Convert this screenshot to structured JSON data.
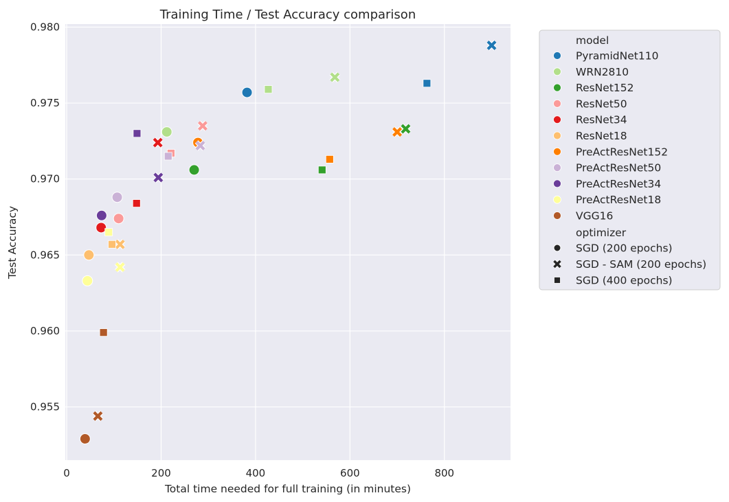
{
  "chart_data": {
    "type": "scatter",
    "title": "Training Time / Test Accuracy comparison",
    "xlabel": "Total time needed for full training (in minutes)",
    "ylabel": "Test Accuracy",
    "xlim": [
      -3,
      940
    ],
    "ylim": [
      0.9515,
      0.9802
    ],
    "xticks": [
      0,
      200,
      400,
      600,
      800
    ],
    "yticks": [
      0.955,
      0.96,
      0.965,
      0.97,
      0.975,
      0.98
    ],
    "grid": true,
    "legend_position": "outside-right",
    "legend": {
      "hue_title": "model",
      "style_title": "optimizer",
      "models": [
        {
          "name": "PyramidNet110",
          "color": "#1f78b4"
        },
        {
          "name": "WRN2810",
          "color": "#b2df8a"
        },
        {
          "name": "ResNet152",
          "color": "#33a02c"
        },
        {
          "name": "ResNet50",
          "color": "#fb9a99"
        },
        {
          "name": "ResNet34",
          "color": "#e31a1c"
        },
        {
          "name": "ResNet18",
          "color": "#fdbf6f"
        },
        {
          "name": "PreActResNet152",
          "color": "#ff7f00"
        },
        {
          "name": "PreActResNet50",
          "color": "#cab2d6"
        },
        {
          "name": "PreActResNet34",
          "color": "#6a3d9a"
        },
        {
          "name": "PreActResNet18",
          "color": "#ffff99"
        },
        {
          "name": "VGG16",
          "color": "#b15928"
        }
      ],
      "optimizers": [
        {
          "name": "SGD (200 epochs)",
          "marker": "circle"
        },
        {
          "name": "SGD - SAM (200 epochs)",
          "marker": "x"
        },
        {
          "name": "SGD (400 epochs)",
          "marker": "square"
        }
      ]
    },
    "points": [
      {
        "model": "PyramidNet110",
        "optimizer": "SGD (200 epochs)",
        "x": 382,
        "y": 0.9757
      },
      {
        "model": "PyramidNet110",
        "optimizer": "SGD - SAM (200 epochs)",
        "x": 900,
        "y": 0.9788
      },
      {
        "model": "PyramidNet110",
        "optimizer": "SGD (400 epochs)",
        "x": 763,
        "y": 0.9763
      },
      {
        "model": "WRN2810",
        "optimizer": "SGD (200 epochs)",
        "x": 212,
        "y": 0.9731
      },
      {
        "model": "WRN2810",
        "optimizer": "SGD - SAM (200 epochs)",
        "x": 568,
        "y": 0.9767
      },
      {
        "model": "WRN2810",
        "optimizer": "SGD (400 epochs)",
        "x": 427,
        "y": 0.9759
      },
      {
        "model": "ResNet152",
        "optimizer": "SGD (200 epochs)",
        "x": 270,
        "y": 0.9706
      },
      {
        "model": "ResNet152",
        "optimizer": "SGD - SAM (200 epochs)",
        "x": 718,
        "y": 0.9733
      },
      {
        "model": "ResNet152",
        "optimizer": "SGD (400 epochs)",
        "x": 541,
        "y": 0.9706
      },
      {
        "model": "ResNet50",
        "optimizer": "SGD (200 epochs)",
        "x": 110,
        "y": 0.9674
      },
      {
        "model": "ResNet50",
        "optimizer": "SGD - SAM (200 epochs)",
        "x": 288,
        "y": 0.9735
      },
      {
        "model": "ResNet50",
        "optimizer": "SGD (400 epochs)",
        "x": 221,
        "y": 0.9717
      },
      {
        "model": "ResNet34",
        "optimizer": "SGD (200 epochs)",
        "x": 73,
        "y": 0.9668
      },
      {
        "model": "ResNet34",
        "optimizer": "SGD - SAM (200 epochs)",
        "x": 193,
        "y": 0.9724
      },
      {
        "model": "ResNet34",
        "optimizer": "SGD (400 epochs)",
        "x": 148,
        "y": 0.9684
      },
      {
        "model": "ResNet18",
        "optimizer": "SGD (200 epochs)",
        "x": 47,
        "y": 0.965
      },
      {
        "model": "ResNet18",
        "optimizer": "SGD - SAM (200 epochs)",
        "x": 113,
        "y": 0.9657
      },
      {
        "model": "ResNet18",
        "optimizer": "SGD (400 epochs)",
        "x": 96,
        "y": 0.9657
      },
      {
        "model": "PreActResNet152",
        "optimizer": "SGD (200 epochs)",
        "x": 278,
        "y": 0.9724
      },
      {
        "model": "PreActResNet152",
        "optimizer": "SGD - SAM (200 epochs)",
        "x": 700,
        "y": 0.9731
      },
      {
        "model": "PreActResNet152",
        "optimizer": "SGD (400 epochs)",
        "x": 557,
        "y": 0.9713
      },
      {
        "model": "PreActResNet50",
        "optimizer": "SGD (200 epochs)",
        "x": 107,
        "y": 0.9688
      },
      {
        "model": "PreActResNet50",
        "optimizer": "SGD - SAM (200 epochs)",
        "x": 283,
        "y": 0.9722
      },
      {
        "model": "PreActResNet50",
        "optimizer": "SGD (400 epochs)",
        "x": 215,
        "y": 0.9715
      },
      {
        "model": "PreActResNet34",
        "optimizer": "SGD (200 epochs)",
        "x": 74,
        "y": 0.9676
      },
      {
        "model": "PreActResNet34",
        "optimizer": "SGD - SAM (200 epochs)",
        "x": 194,
        "y": 0.9701
      },
      {
        "model": "PreActResNet34",
        "optimizer": "SGD (400 epochs)",
        "x": 149,
        "y": 0.973
      },
      {
        "model": "PreActResNet18",
        "optimizer": "SGD (200 epochs)",
        "x": 44,
        "y": 0.9633
      },
      {
        "model": "PreActResNet18",
        "optimizer": "SGD - SAM (200 epochs)",
        "x": 113,
        "y": 0.9642
      },
      {
        "model": "PreActResNet18",
        "optimizer": "SGD (400 epochs)",
        "x": 89,
        "y": 0.9665
      },
      {
        "model": "VGG16",
        "optimizer": "SGD (200 epochs)",
        "x": 39,
        "y": 0.9529
      },
      {
        "model": "VGG16",
        "optimizer": "SGD - SAM (200 epochs)",
        "x": 66,
        "y": 0.9544
      },
      {
        "model": "VGG16",
        "optimizer": "SGD (400 epochs)",
        "x": 78,
        "y": 0.9599
      }
    ]
  }
}
